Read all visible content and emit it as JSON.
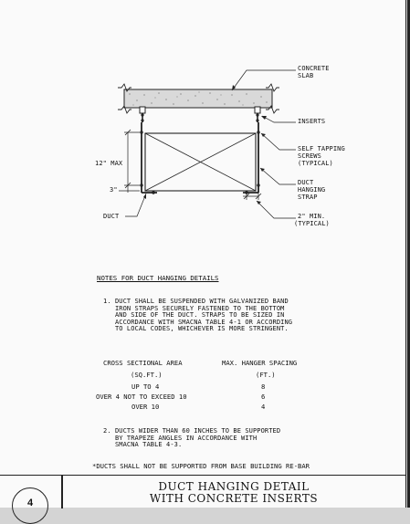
{
  "diagram": {
    "labels": {
      "concrete_slab": [
        "CONCRETE",
        "SLAB"
      ],
      "inserts": "INSERTS",
      "self_tapping": [
        "SELF TAPPING",
        "SCREWS",
        "(TYPICAL)"
      ],
      "duct_hanging_strap": [
        "DUCT",
        "HANGING",
        "STRAP"
      ],
      "min_2": [
        "2\" MIN.",
        "(TYPICAL)"
      ],
      "max_12": "12\" MAX",
      "dim_3": "3\"",
      "duct": "DUCT"
    }
  },
  "notes": {
    "heading": "NOTES FOR DUCT HANGING DETAILS",
    "note1_lines": [
      "1. DUCT SHALL BE SUSPENDED WITH GALVANIZED BAND",
      "   IRON STRAPS SECURELY FASTENED TO THE BOTTOM",
      "   AND SIDE OF THE DUCT. STRAPS TO BE SIZED IN",
      "   ACCORDANCE WITH SMACNA TABLE 4-1 OR ACCORDING",
      "   TO LOCAL CODES, WHICHEVER IS MORE STRINGENT."
    ],
    "table": {
      "col1_header": "CROSS SECTIONAL AREA",
      "col1_unit": "(SQ.FT.)",
      "col2_header": "MAX. HANGER SPACING",
      "col2_unit": "(FT.)",
      "rows": [
        {
          "area": "UP TO 4",
          "spacing": "8"
        },
        {
          "area": "OVER 4 NOT TO EXCEED 10",
          "spacing": "6"
        },
        {
          "area": "OVER 10",
          "spacing": "4"
        }
      ]
    },
    "note2_lines": [
      "2. DUCTS WIDER THAN 60 INCHES TO BE SUPPORTED",
      "   BY TRAPEZE ANGLES IN ACCORDANCE WITH",
      "   SMACNA TABLE 4-3."
    ],
    "warning": "*DUCTS SHALL NOT BE SUPPORTED FROM BASE BUILDING RE-BAR"
  },
  "title_block": {
    "title_line1": "DUCT HANGING DETAIL",
    "title_line2": "WITH CONCRETE INSERTS",
    "detail_number": "4"
  }
}
